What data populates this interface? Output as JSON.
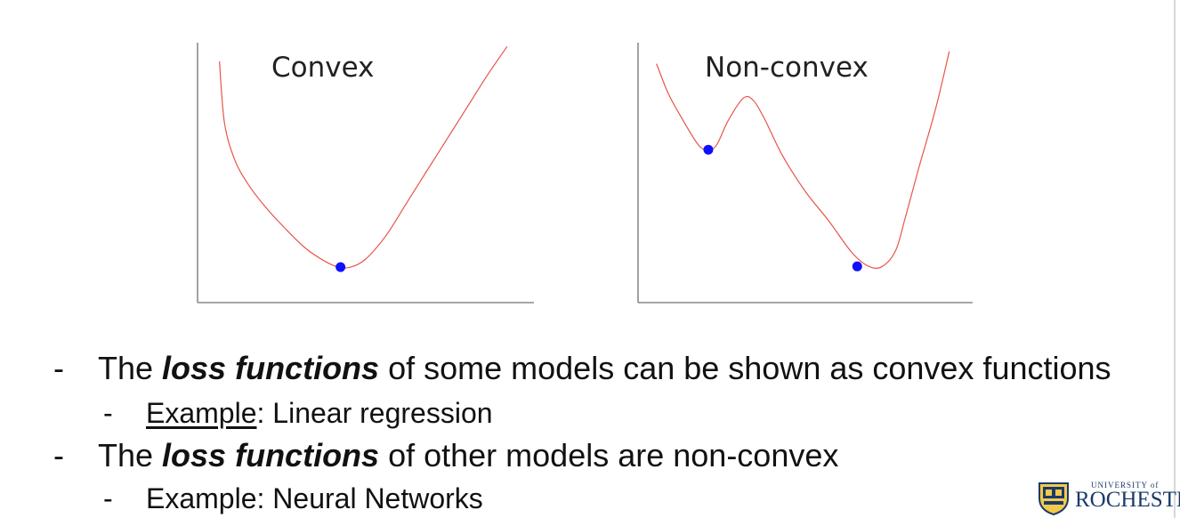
{
  "chart_data": [
    {
      "type": "line",
      "title": "Convex",
      "xlabel": "",
      "ylabel": "",
      "grid": false,
      "xlim": [
        0,
        10
      ],
      "ylim": [
        0,
        10
      ],
      "series": [
        {
          "color": "#e8554a",
          "x": [
            0.65,
            0.8,
            1.1,
            1.5,
            2.0,
            2.6,
            3.2,
            3.8,
            4.2,
            4.55,
            5.0,
            5.6,
            6.2,
            6.8,
            7.4,
            8.0,
            8.6,
            9.2
          ],
          "y": [
            9.1,
            6.6,
            5.1,
            4.1,
            3.2,
            2.3,
            1.5,
            0.95,
            0.72,
            0.72,
            1.05,
            2.0,
            3.3,
            4.6,
            5.9,
            7.2,
            8.5,
            9.7
          ]
        }
      ],
      "points": [
        {
          "x": 4.25,
          "y": 0.72,
          "color": "#1010ff"
        }
      ]
    },
    {
      "type": "line",
      "title": "Non-convex",
      "xlabel": "",
      "ylabel": "",
      "grid": false,
      "xlim": [
        0,
        10
      ],
      "ylim": [
        0,
        10
      ],
      "series": [
        {
          "color": "#e8554a",
          "x": [
            0.55,
            0.9,
            1.3,
            1.8,
            2.1,
            2.35,
            2.7,
            3.15,
            3.45,
            3.8,
            4.3,
            5.0,
            5.7,
            6.4,
            6.9,
            7.3,
            7.7,
            8.0,
            8.4,
            8.9,
            9.3
          ],
          "y": [
            9.0,
            7.8,
            6.8,
            5.7,
            5.5,
            5.7,
            6.7,
            7.6,
            7.5,
            6.7,
            5.3,
            3.8,
            2.6,
            1.3,
            0.75,
            0.75,
            1.4,
            2.8,
            4.8,
            7.2,
            9.5
          ]
        }
      ],
      "points": [
        {
          "x": 2.1,
          "y": 5.5,
          "color": "#1010ff"
        },
        {
          "x": 6.55,
          "y": 0.75,
          "color": "#1010ff"
        }
      ]
    }
  ],
  "bullets": [
    {
      "level": 1,
      "dash": "-",
      "parts": [
        "The ",
        "loss functions",
        " of some models can be shown as convex functions"
      ]
    },
    {
      "level": 2,
      "dash": "-",
      "parts": [
        "Example",
        ": Linear regression"
      ]
    },
    {
      "level": 1,
      "dash": "-",
      "parts": [
        "The ",
        "loss functions",
        " of other models are non-convex"
      ]
    },
    {
      "level": 2,
      "dash": "-",
      "parts": [
        "Example: Neural Networks"
      ]
    }
  ],
  "logo": {
    "small_text": "UNIVERSITY of",
    "big_text": "ROCHESTE"
  },
  "colors": {
    "curve": "#e8554a",
    "point": "#1010ff",
    "axis": "#8a8a8a",
    "text": "#111111",
    "logo": "#1b3a6b"
  }
}
